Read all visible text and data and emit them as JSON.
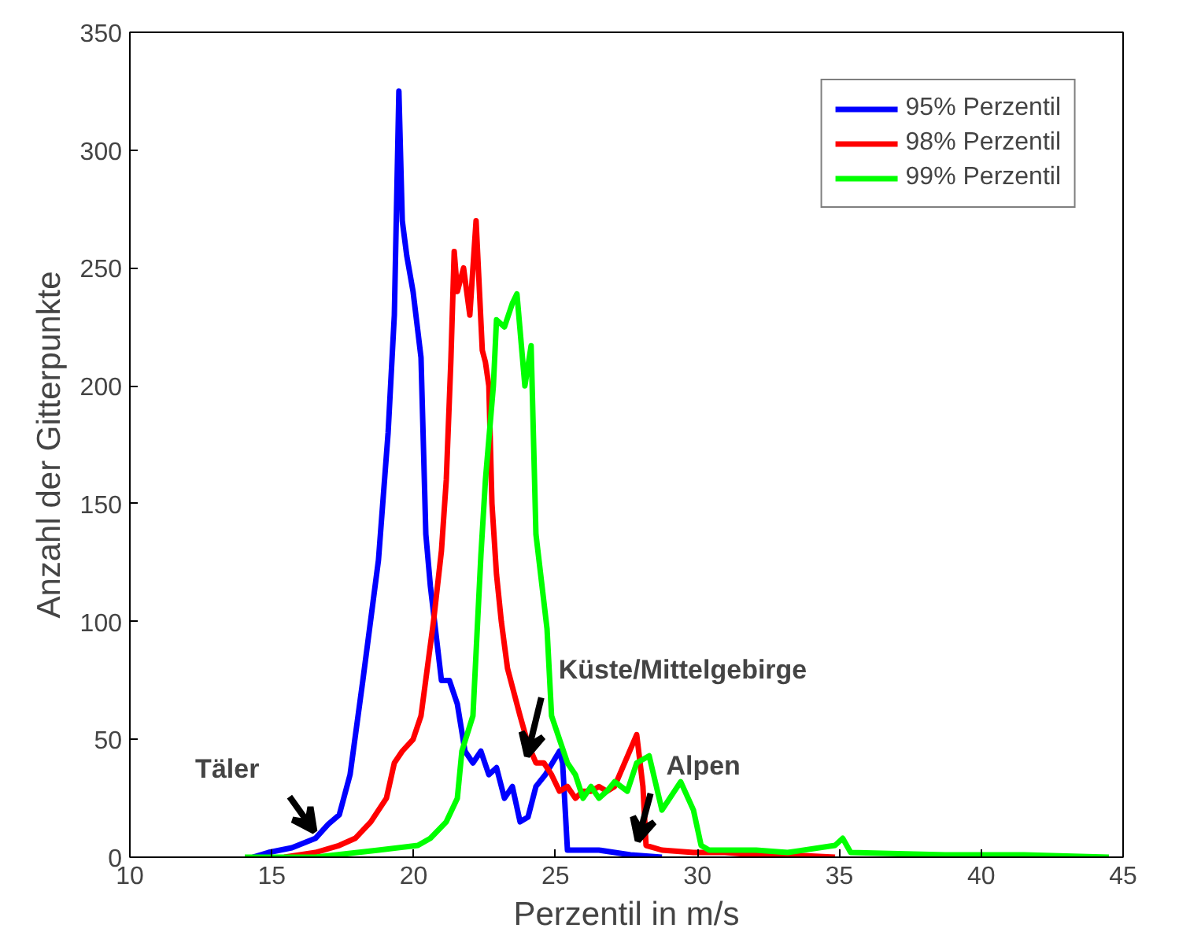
{
  "chart_data": {
    "type": "line",
    "xlabel": "Perzentil in m/s",
    "ylabel": "Anzahl der Gitterpunkte",
    "xlim": [
      10,
      45
    ],
    "xticks": [
      10,
      15,
      20,
      25,
      30,
      35,
      40,
      45
    ],
    "ylim": [
      0,
      350
    ],
    "yticks": [
      0,
      50,
      100,
      150,
      200,
      250,
      300,
      350
    ],
    "grid": false,
    "legend": "top right",
    "line_style": "solid",
    "marker": "none",
    "series": [
      {
        "name": "95% Perzentil",
        "color": "#0000ff",
        "x": [
          14.33,
          14.88,
          15.71,
          16.54,
          16.99,
          17.38,
          17.76,
          18.21,
          18.76,
          19.1,
          19.32,
          19.48,
          19.6,
          19.76,
          19.98,
          20.26,
          20.43,
          20.59,
          20.98,
          21.26,
          21.54,
          21.81,
          22.09,
          22.37,
          22.65,
          22.92,
          23.2,
          23.48,
          23.75,
          24.03,
          24.31,
          24.64,
          25.14,
          25.25,
          25.42,
          26.53,
          27.64,
          28.75
        ],
        "values": [
          0,
          2,
          4,
          8,
          14,
          18,
          35,
          75,
          126,
          180,
          230,
          325,
          270,
          255,
          240,
          212,
          137,
          115,
          75,
          75,
          65,
          45,
          40,
          45,
          35,
          38,
          25,
          30,
          15,
          17,
          30,
          35,
          45,
          40,
          3,
          3,
          1,
          0
        ]
      },
      {
        "name": "98% Perzentil",
        "color": "#ff0000",
        "x": [
          15.44,
          16.54,
          17.38,
          17.94,
          18.49,
          19.04,
          19.32,
          19.6,
          19.98,
          20.26,
          20.7,
          20.98,
          21.15,
          21.31,
          21.43,
          21.54,
          21.76,
          21.98,
          22.2,
          22.42,
          22.53,
          22.65,
          22.76,
          22.92,
          23.09,
          23.31,
          23.53,
          23.75,
          24.03,
          24.31,
          24.59,
          24.86,
          25.14,
          25.42,
          25.7,
          25.97,
          26.25,
          26.53,
          26.81,
          27.08,
          27.86,
          28.08,
          28.19,
          28.75,
          29.86,
          30.97,
          32.07,
          33.18,
          34.85
        ],
        "values": [
          0,
          2,
          5,
          8,
          15,
          25,
          40,
          45,
          50,
          60,
          100,
          130,
          160,
          210,
          257,
          240,
          250,
          230,
          270,
          215,
          210,
          200,
          150,
          120,
          100,
          80,
          70,
          60,
          48,
          40,
          40,
          35,
          28,
          30,
          25,
          28,
          28,
          30,
          28,
          30,
          52,
          30,
          5,
          3,
          2,
          2,
          1,
          1,
          0
        ]
      },
      {
        "name": "99% Perzentil",
        "color": "#00ff00",
        "x": [
          14.05,
          16.54,
          18.76,
          20.15,
          20.59,
          21.15,
          21.54,
          21.7,
          22.09,
          22.37,
          22.53,
          22.81,
          22.92,
          23.2,
          23.48,
          23.64,
          23.92,
          24.14,
          24.31,
          24.7,
          24.86,
          25.14,
          25.42,
          25.7,
          25.97,
          26.25,
          26.53,
          26.81,
          27.08,
          27.53,
          27.86,
          28.3,
          28.75,
          29.41,
          29.86,
          30.13,
          30.41,
          32.07,
          33.18,
          34.85,
          35.12,
          35.4,
          38.73,
          41.5,
          44.5
        ],
        "values": [
          0,
          0,
          3,
          5,
          8,
          15,
          25,
          45,
          60,
          128,
          160,
          200,
          228,
          225,
          235,
          239,
          200,
          217,
          137,
          97,
          60,
          50,
          40,
          35,
          25,
          30,
          25,
          28,
          32,
          28,
          40,
          43,
          20,
          32,
          20,
          5,
          3,
          3,
          2,
          5,
          8,
          2,
          1,
          1,
          0
        ]
      }
    ],
    "annotations": [
      {
        "text": "Täler",
        "x": 16.5,
        "y": 11
      },
      {
        "text": "Küste/Mittelgebirge",
        "x": 24.0,
        "y": 43
      },
      {
        "text": "Alpen",
        "x": 27.9,
        "y": 7
      }
    ]
  }
}
